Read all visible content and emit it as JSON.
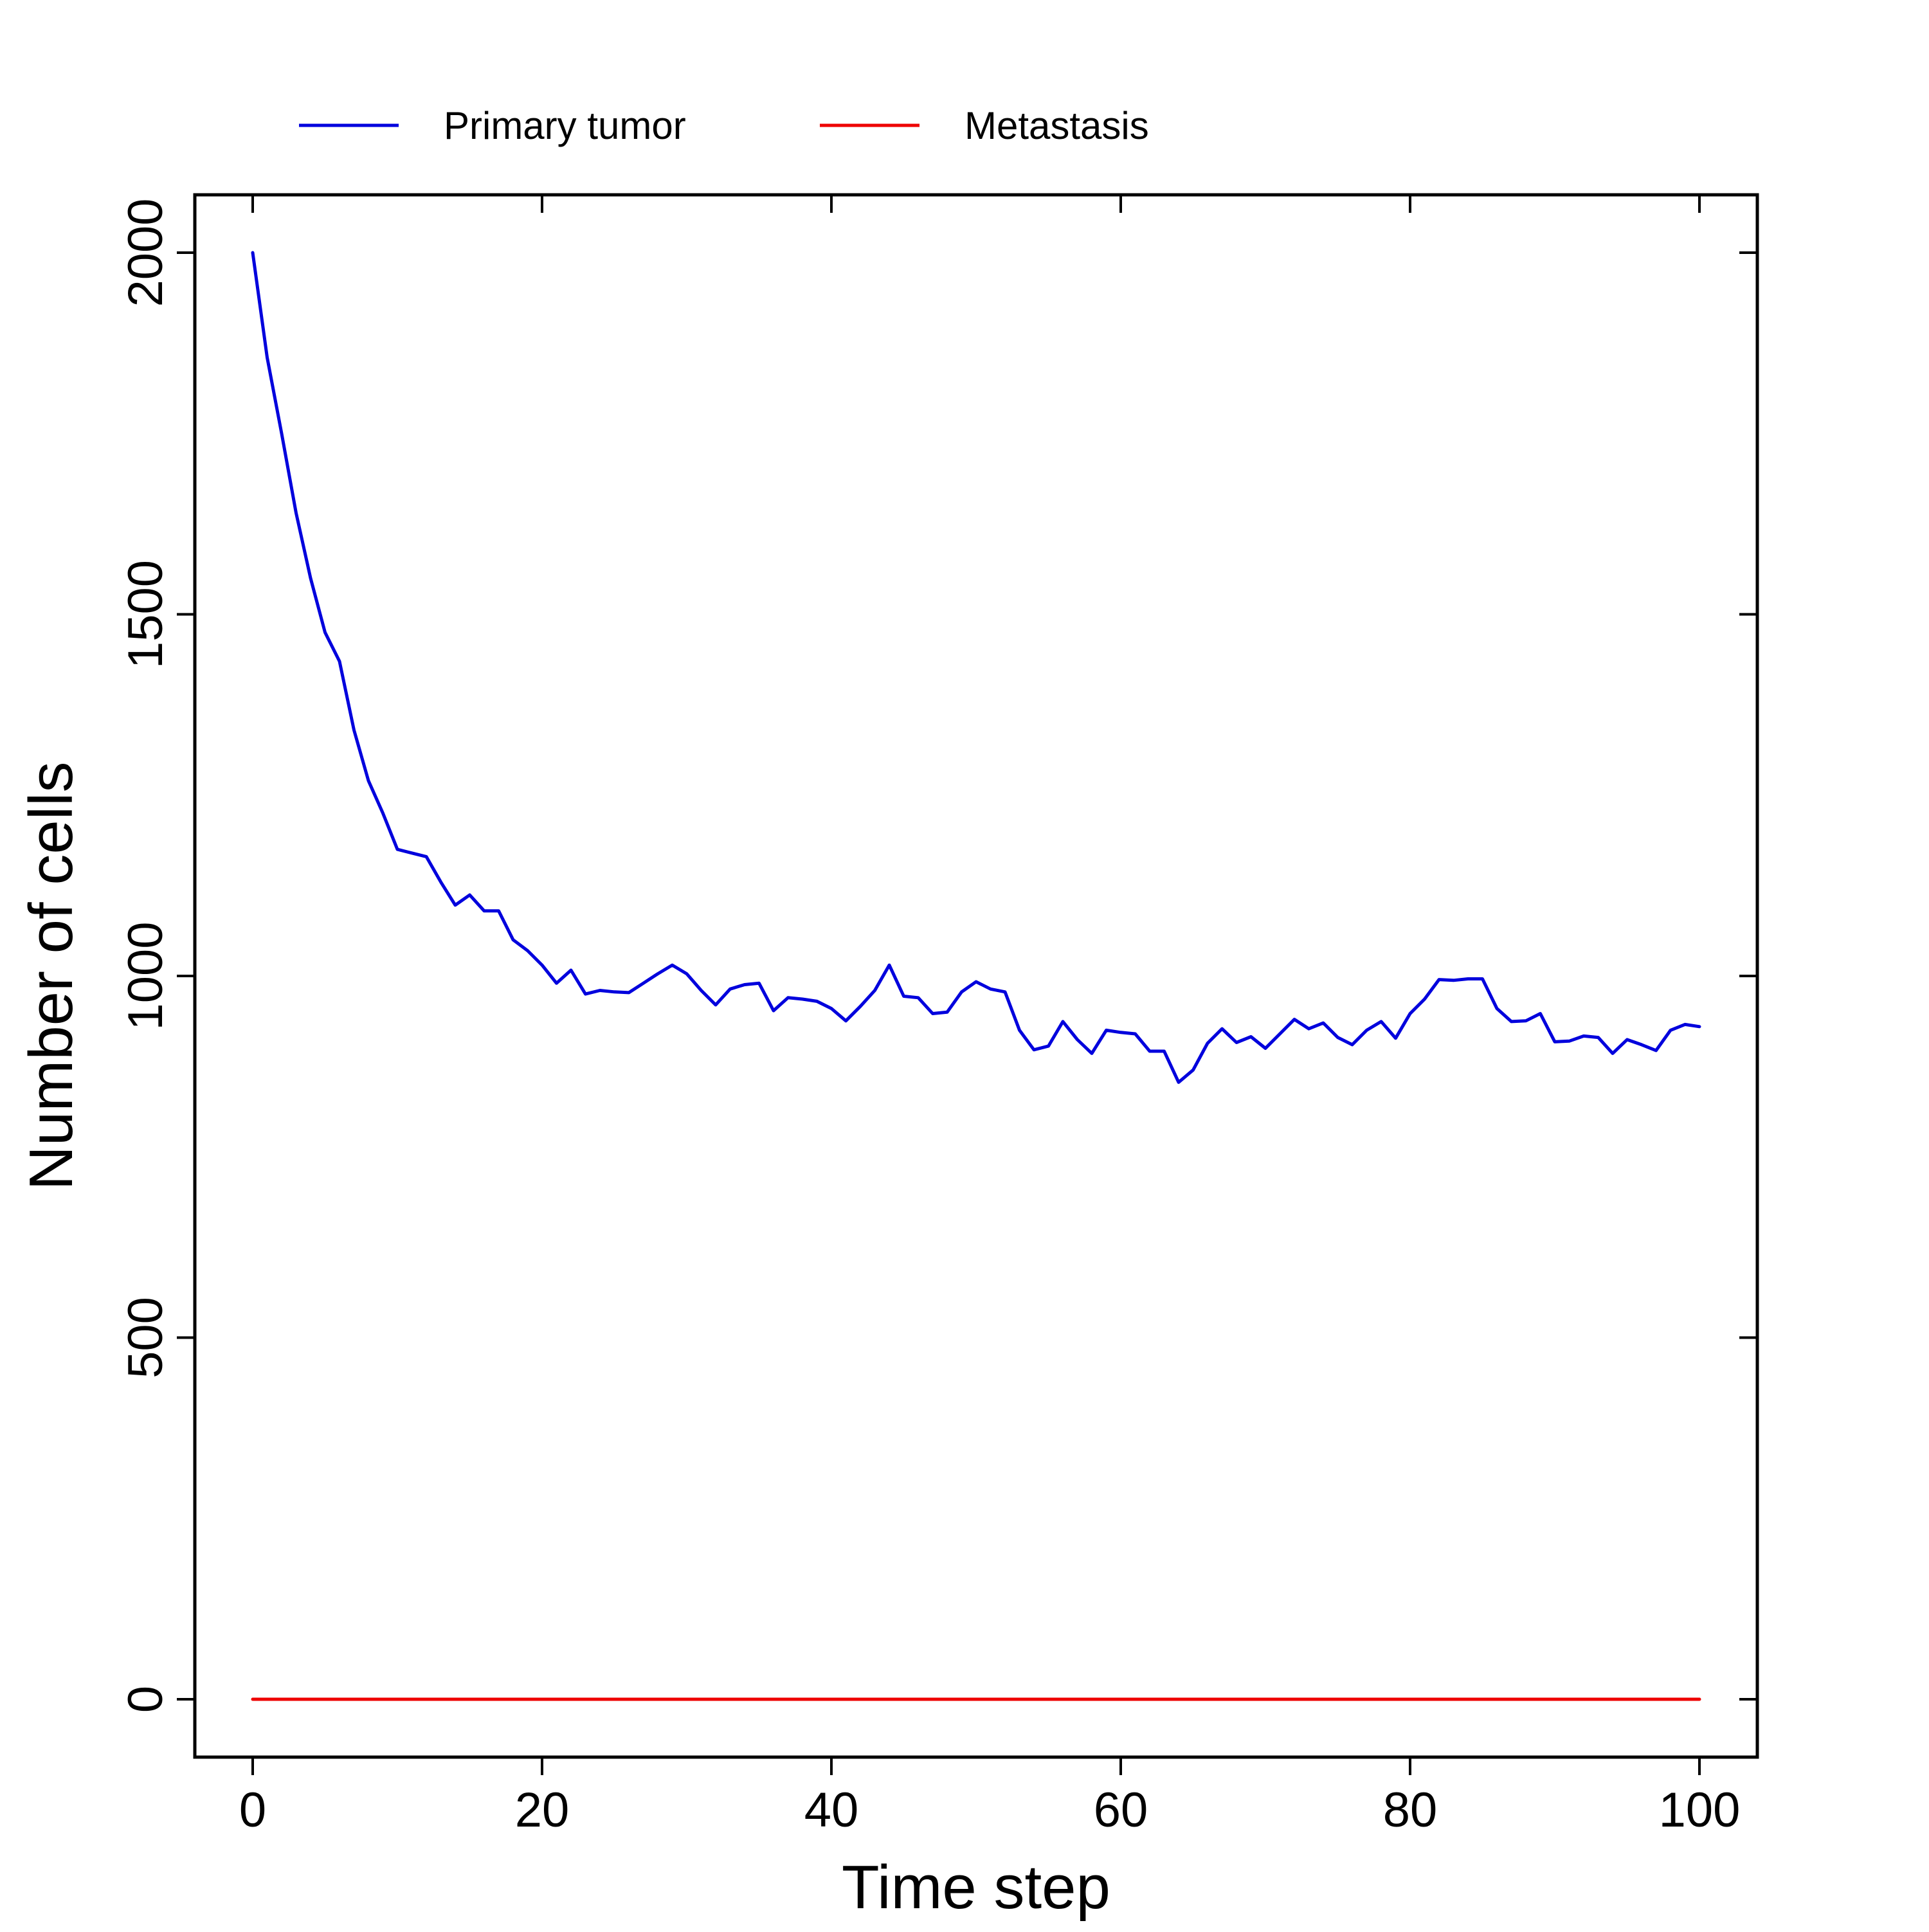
{
  "chart_data": {
    "type": "line",
    "title": "",
    "xlabel": "Time step",
    "ylabel": "Number of cells",
    "xlim": [
      -4,
      104
    ],
    "ylim": [
      -80,
      2080
    ],
    "xticks": [
      0,
      20,
      40,
      60,
      80,
      100
    ],
    "yticks": [
      0,
      500,
      1000,
      1500,
      2000
    ],
    "xtick_labels": [
      "0",
      "20",
      "40",
      "60",
      "80",
      "100"
    ],
    "ytick_labels": [
      "0",
      "500",
      "1000",
      "1500",
      "2000"
    ],
    "grid": false,
    "legend_position": "top, above plot, horizontal",
    "x": [
      0,
      1,
      2,
      3,
      4,
      5,
      6,
      7,
      8,
      9,
      10,
      11,
      12,
      13,
      14,
      15,
      16,
      17,
      18,
      19,
      20,
      21,
      22,
      23,
      24,
      25,
      26,
      27,
      28,
      29,
      30,
      31,
      32,
      33,
      34,
      35,
      36,
      37,
      38,
      39,
      40,
      41,
      42,
      43,
      44,
      45,
      46,
      47,
      48,
      49,
      50,
      51,
      52,
      53,
      54,
      55,
      56,
      57,
      58,
      59,
      60,
      61,
      62,
      63,
      64,
      65,
      66,
      67,
      68,
      69,
      70,
      71,
      72,
      73,
      74,
      75,
      76,
      77,
      78,
      79,
      80,
      81,
      82,
      83,
      84,
      85,
      86,
      87,
      88,
      89,
      90,
      91,
      92,
      93,
      94,
      95,
      96,
      97,
      98,
      99,
      100
    ],
    "series": [
      {
        "name": "Primary tumor",
        "color": "#0000dd",
        "values": [
          2000,
          1855,
          1750,
          1640,
          1550,
          1475,
          1435,
          1340,
          1270,
          1225,
          1175,
          1170,
          1165,
          1130,
          1098,
          1112,
          1090,
          1090,
          1050,
          1035,
          1015,
          990,
          1008,
          975,
          980,
          978,
          977,
          990,
          1003,
          1015,
          1003,
          980,
          960,
          982,
          988,
          990,
          952,
          970,
          968,
          965,
          955,
          938,
          958,
          980,
          1015,
          972,
          970,
          948,
          950,
          978,
          992,
          982,
          978,
          925,
          898,
          903,
          937,
          912,
          893,
          925,
          922,
          920,
          896,
          896,
          853,
          870,
          907,
          927,
          908,
          916,
          900,
          920,
          940,
          927,
          935,
          915,
          905,
          925,
          937,
          914,
          948,
          968,
          995,
          994,
          996,
          996,
          955,
          937,
          938,
          948,
          909,
          910,
          917,
          915,
          893,
          912,
          905,
          897,
          925,
          933,
          930
        ]
      },
      {
        "name": "Metastasis",
        "color": "#ee0000",
        "values": [
          0,
          0,
          0,
          0,
          0,
          0,
          0,
          0,
          0,
          0,
          0,
          0,
          0,
          0,
          0,
          0,
          0,
          0,
          0,
          0,
          0,
          0,
          0,
          0,
          0,
          0,
          0,
          0,
          0,
          0,
          0,
          0,
          0,
          0,
          0,
          0,
          0,
          0,
          0,
          0,
          0,
          0,
          0,
          0,
          0,
          0,
          0,
          0,
          0,
          0,
          0,
          0,
          0,
          0,
          0,
          0,
          0,
          0,
          0,
          0,
          0,
          0,
          0,
          0,
          0,
          0,
          0,
          0,
          0,
          0,
          0,
          0,
          0,
          0,
          0,
          0,
          0,
          0,
          0,
          0,
          0,
          0,
          0,
          0,
          0,
          0,
          0,
          0,
          0,
          0,
          0,
          0,
          0,
          0,
          0,
          0,
          0,
          0,
          0,
          0,
          0
        ]
      }
    ]
  }
}
